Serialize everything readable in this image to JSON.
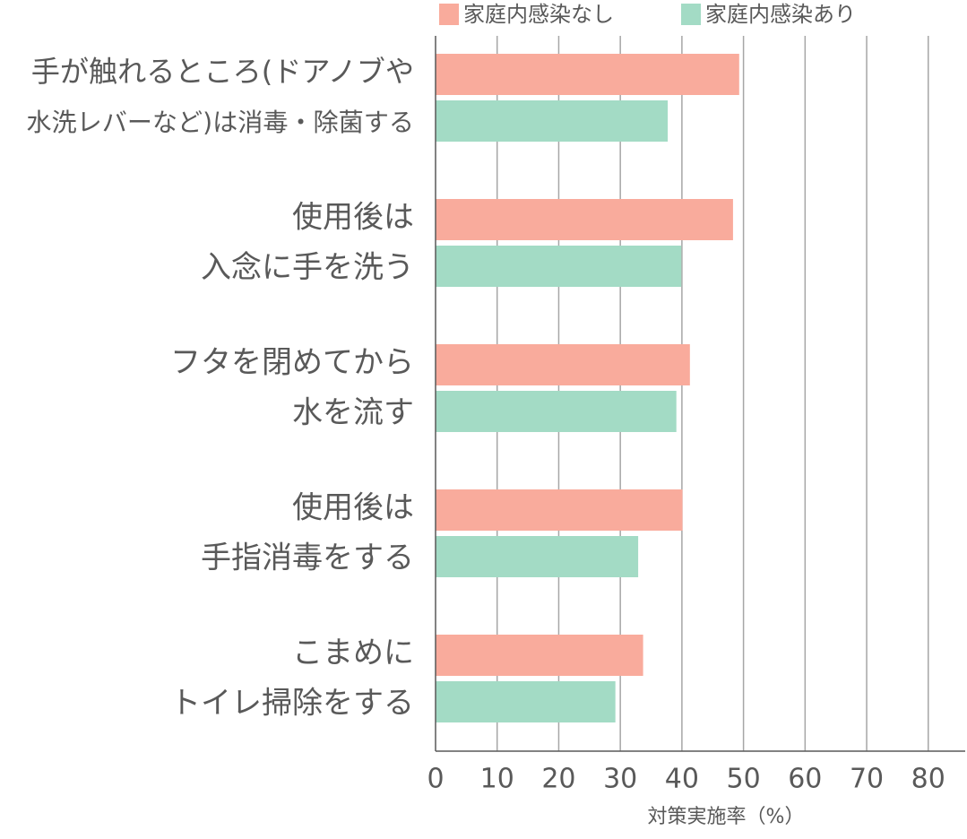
{
  "chart_data": {
    "type": "barh",
    "categories": [
      [
        "手が触れるところ(ドアノブや",
        "水洗レバーなど)は消毒・除菌する"
      ],
      [
        "使用後は",
        "入念に手を洗う"
      ],
      [
        "フタを閉めてから",
        "水を流す"
      ],
      [
        "使用後は",
        "手指消毒をする"
      ],
      [
        "こまめに",
        "トイレ掃除をする"
      ]
    ],
    "series": [
      {
        "name": "家庭内感染なし",
        "color": "#f9ab9c",
        "values": [
          49.3,
          48.3,
          41.3,
          40.1,
          33.7
        ]
      },
      {
        "name": "家庭内感染あり",
        "color": "#a3dbc5",
        "values": [
          37.7,
          39.9,
          39.1,
          32.9,
          29.2
        ]
      }
    ],
    "xlabel": "対策実施率（%）",
    "xlim": [
      0,
      86
    ],
    "xticks": [
      0,
      10,
      20,
      30,
      40,
      50,
      60,
      70,
      80
    ],
    "grid": true,
    "legend": "top"
  }
}
